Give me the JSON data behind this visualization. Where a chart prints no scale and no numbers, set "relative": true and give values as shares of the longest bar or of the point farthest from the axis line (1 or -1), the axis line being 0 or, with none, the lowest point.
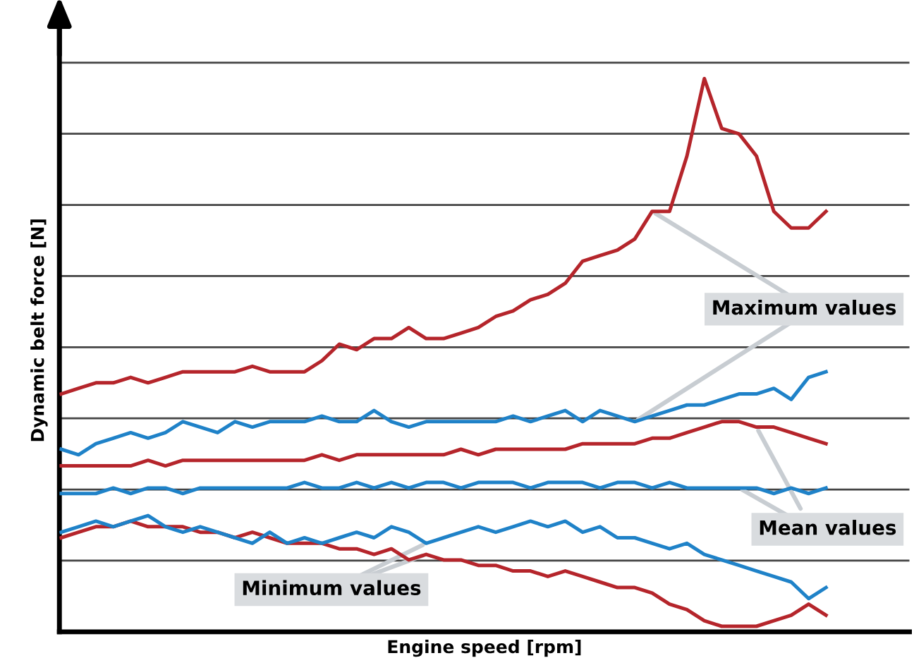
{
  "chart_data": {
    "type": "line",
    "relative": true,
    "xlabel": "Engine speed [rpm]",
    "ylabel": "Dynamic belt force [N]",
    "categories": [
      null,
      null,
      null,
      null,
      null,
      null,
      null,
      null,
      null,
      null,
      null,
      null,
      null,
      null,
      null,
      null,
      null,
      null,
      null,
      null,
      null,
      null,
      null,
      null,
      null,
      null,
      null,
      null,
      null,
      null,
      null,
      null,
      null,
      null,
      null,
      null,
      null,
      null,
      null,
      null,
      null,
      null,
      null,
      null,
      null
    ],
    "series": [
      {
        "color": "#b5252b",
        "values": [
          0.43,
          0.44,
          0.45,
          0.45,
          0.46,
          0.45,
          0.46,
          0.47,
          0.47,
          0.47,
          0.47,
          0.48,
          0.47,
          0.47,
          0.47,
          0.49,
          0.52,
          0.51,
          0.53,
          0.53,
          0.55,
          0.53,
          0.53,
          0.54,
          0.55,
          0.57,
          0.58,
          0.6,
          0.61,
          0.63,
          0.67,
          0.68,
          0.69,
          0.71,
          0.76,
          0.76,
          0.86,
          1.0,
          0.91,
          0.9,
          0.86,
          0.76,
          0.73,
          0.73,
          0.76
        ]
      },
      {
        "color": "#1f82c8",
        "values": [
          0.33,
          0.32,
          0.34,
          0.35,
          0.36,
          0.35,
          0.36,
          0.38,
          0.37,
          0.36,
          0.38,
          0.37,
          0.38,
          0.38,
          0.38,
          0.39,
          0.38,
          0.38,
          0.4,
          0.38,
          0.37,
          0.38,
          0.38,
          0.38,
          0.38,
          0.38,
          0.39,
          0.38,
          0.39,
          0.4,
          0.38,
          0.4,
          0.39,
          0.38,
          0.39,
          0.4,
          0.41,
          0.41,
          0.42,
          0.43,
          0.43,
          0.44,
          0.42,
          0.46,
          0.47
        ]
      },
      {
        "color": "#b5252b",
        "values": [
          0.3,
          0.3,
          0.3,
          0.3,
          0.3,
          0.31,
          0.3,
          0.31,
          0.31,
          0.31,
          0.31,
          0.31,
          0.31,
          0.31,
          0.31,
          0.32,
          0.31,
          0.32,
          0.32,
          0.32,
          0.32,
          0.32,
          0.32,
          0.33,
          0.32,
          0.33,
          0.33,
          0.33,
          0.33,
          0.33,
          0.34,
          0.34,
          0.34,
          0.34,
          0.35,
          0.35,
          0.36,
          0.37,
          0.38,
          0.38,
          0.37,
          0.37,
          0.36,
          0.35,
          0.34
        ]
      },
      {
        "color": "#1f82c8",
        "values": [
          0.25,
          0.25,
          0.25,
          0.26,
          0.25,
          0.26,
          0.26,
          0.25,
          0.26,
          0.26,
          0.26,
          0.26,
          0.26,
          0.26,
          0.27,
          0.26,
          0.26,
          0.27,
          0.26,
          0.27,
          0.26,
          0.27,
          0.27,
          0.26,
          0.27,
          0.27,
          0.27,
          0.26,
          0.27,
          0.27,
          0.27,
          0.26,
          0.27,
          0.27,
          0.26,
          0.27,
          0.26,
          0.26,
          0.26,
          0.26,
          0.26,
          0.25,
          0.26,
          0.25,
          0.26
        ]
      },
      {
        "color": "#b5252b",
        "values": [
          0.17,
          0.18,
          0.19,
          0.19,
          0.2,
          0.19,
          0.19,
          0.19,
          0.18,
          0.18,
          0.17,
          0.18,
          0.17,
          0.16,
          0.16,
          0.16,
          0.15,
          0.15,
          0.14,
          0.15,
          0.13,
          0.14,
          0.13,
          0.13,
          0.12,
          0.12,
          0.11,
          0.11,
          0.1,
          0.11,
          0.1,
          0.09,
          0.08,
          0.08,
          0.07,
          0.05,
          0.04,
          0.02,
          0.01,
          0.01,
          0.01,
          0.02,
          0.03,
          0.05,
          0.03
        ]
      },
      {
        "color": "#1f82c8",
        "values": [
          0.18,
          0.19,
          0.2,
          0.19,
          0.2,
          0.21,
          0.19,
          0.18,
          0.19,
          0.18,
          0.17,
          0.16,
          0.18,
          0.16,
          0.17,
          0.16,
          0.17,
          0.18,
          0.17,
          0.19,
          0.18,
          0.16,
          0.17,
          0.18,
          0.19,
          0.18,
          0.19,
          0.2,
          0.19,
          0.2,
          0.18,
          0.19,
          0.17,
          0.17,
          0.16,
          0.15,
          0.16,
          0.14,
          0.13,
          0.12,
          0.11,
          0.1,
          0.09,
          0.06,
          0.08
        ]
      }
    ],
    "annotations": [
      "Maximum values",
      "Mean values",
      "Minimum values"
    ],
    "grid": "y",
    "legend": false,
    "marker": "none",
    "line_style": "solid"
  }
}
